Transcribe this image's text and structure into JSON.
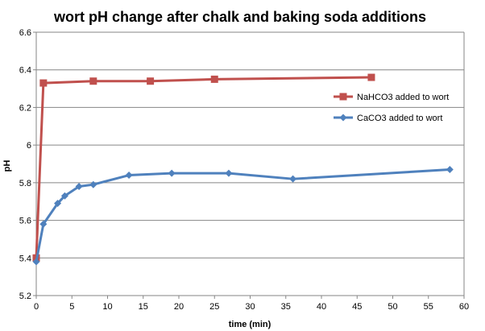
{
  "chart_data": {
    "type": "line",
    "title": "wort pH change after chalk and baking soda additions",
    "xlabel": "time (min)",
    "ylabel": "pH",
    "xlim": [
      0,
      60
    ],
    "ylim": [
      5.2,
      6.6
    ],
    "x_ticks": [
      0,
      5,
      10,
      15,
      20,
      25,
      30,
      35,
      40,
      45,
      50,
      55,
      60
    ],
    "y_ticks": [
      5.2,
      5.4,
      5.6,
      5.8,
      6,
      6.2,
      6.4,
      6.6
    ],
    "y_tick_labels": [
      "5.2",
      "5.4",
      "5.6",
      "5.8",
      "6",
      "6.2",
      "6.4",
      "6.6"
    ],
    "grid": "horizontal",
    "legend_position": "right",
    "series": [
      {
        "name": "NaHCO3 added to wort",
        "color": "#C0504D",
        "marker": "square",
        "points": [
          [
            0,
            5.4
          ],
          [
            1,
            6.33
          ],
          [
            8,
            6.34
          ],
          [
            16,
            6.34
          ],
          [
            25,
            6.35
          ],
          [
            47,
            6.36
          ]
        ]
      },
      {
        "name": "CaCO3 added to wort",
        "color": "#4F81BD",
        "marker": "diamond",
        "points": [
          [
            0,
            5.38
          ],
          [
            1,
            5.58
          ],
          [
            3,
            5.69
          ],
          [
            4,
            5.73
          ],
          [
            6,
            5.78
          ],
          [
            8,
            5.79
          ],
          [
            13,
            5.84
          ],
          [
            19,
            5.85
          ],
          [
            27,
            5.85
          ],
          [
            36,
            5.82
          ],
          [
            58,
            5.87
          ]
        ]
      }
    ]
  }
}
